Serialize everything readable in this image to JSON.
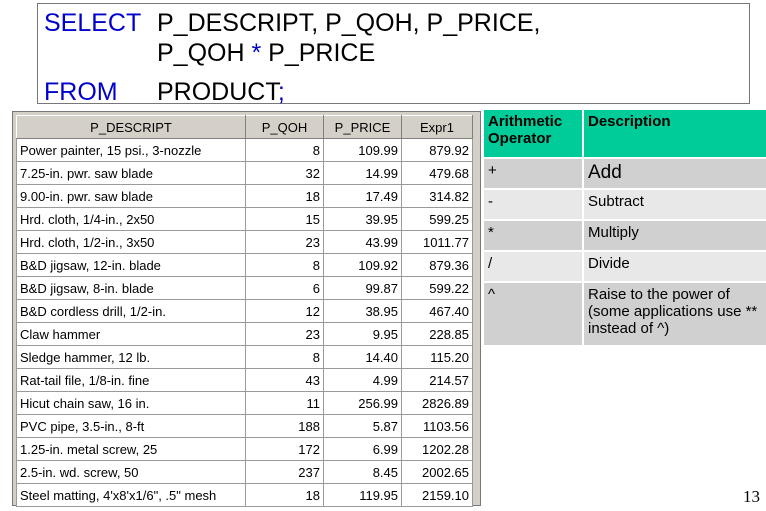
{
  "sql": {
    "select_kw": "SELECT",
    "select_cols_1": "P_DESCRIPT, P_QOH, P_PRICE,",
    "select_cols_2a": "P_QOH ",
    "operator": "*",
    "select_cols_2b": " P_PRICE",
    "from_kw": "FROM",
    "from_table": "PRODUCT",
    "terminator": ";"
  },
  "result": {
    "columns": [
      "P_DESCRIPT",
      "P_QOH",
      "P_PRICE",
      "Expr1"
    ],
    "rows": [
      [
        "Power painter, 15 psi., 3-nozzle",
        "8",
        "109.99",
        "879.92"
      ],
      [
        "7.25-in. pwr. saw blade",
        "32",
        "14.99",
        "479.68"
      ],
      [
        "9.00-in. pwr. saw blade",
        "18",
        "17.49",
        "314.82"
      ],
      [
        "Hrd. cloth, 1/4-in., 2x50",
        "15",
        "39.95",
        "599.25"
      ],
      [
        "Hrd. cloth, 1/2-in., 3x50",
        "23",
        "43.99",
        "1011.77"
      ],
      [
        "B&D jigsaw, 12-in. blade",
        "8",
        "109.92",
        "879.36"
      ],
      [
        "B&D jigsaw, 8-in. blade",
        "6",
        "99.87",
        "599.22"
      ],
      [
        "B&D cordless drill, 1/2-in.",
        "12",
        "38.95",
        "467.40"
      ],
      [
        "Claw hammer",
        "23",
        "9.95",
        "228.85"
      ],
      [
        "Sledge hammer, 12 lb.",
        "8",
        "14.40",
        "115.20"
      ],
      [
        "Rat-tail file, 1/8-in. fine",
        "43",
        "4.99",
        "214.57"
      ],
      [
        "Hicut chain saw, 16 in.",
        "11",
        "256.99",
        "2826.89"
      ],
      [
        "PVC pipe, 3.5-in., 8-ft",
        "188",
        "5.87",
        "1103.56"
      ],
      [
        "1.25-in. metal screw, 25",
        "172",
        "6.99",
        "1202.28"
      ],
      [
        "2.5-in. wd. screw, 50",
        "237",
        "8.45",
        "2002.65"
      ],
      [
        "Steel matting, 4'x8'x1/6\", .5\" mesh",
        "18",
        "119.95",
        "2159.10"
      ]
    ]
  },
  "operators": {
    "header": [
      "Arithmetic Operator",
      "Description"
    ],
    "rows": [
      [
        "+",
        "Add"
      ],
      [
        "-",
        "Subtract"
      ],
      [
        "*",
        "Multiply"
      ],
      [
        "/",
        "Divide"
      ],
      [
        "^",
        "Raise to the power of (some applications use ** instead of ^)"
      ]
    ],
    "header_color": "#00cc99"
  },
  "page_number": "13"
}
